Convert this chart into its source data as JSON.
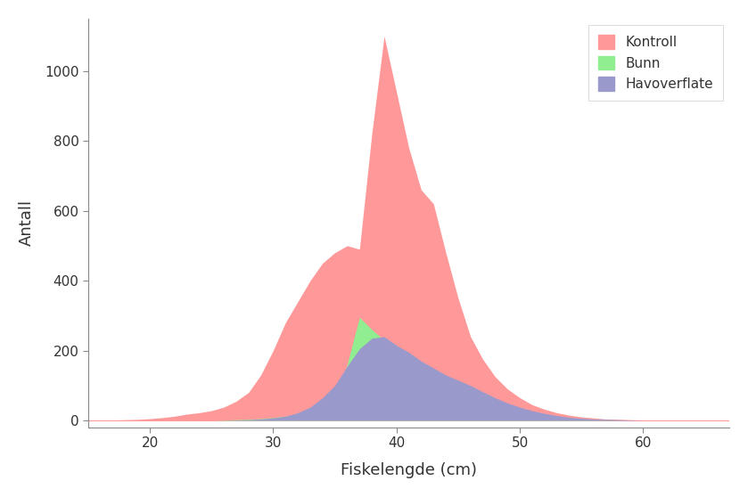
{
  "xlabel": "Fiskelengde (cm)",
  "ylabel": "Antall",
  "xlim": [
    15,
    67
  ],
  "ylim": [
    -20,
    1150
  ],
  "xticks": [
    20,
    30,
    40,
    50,
    60
  ],
  "yticks": [
    0,
    200,
    400,
    600,
    800,
    1000
  ],
  "legend_labels": [
    "Kontroll",
    "Bunn",
    "Havoverflate"
  ],
  "colors": {
    "kontroll": "#FF9999",
    "bunn": "#90EE90",
    "havoverflate": "#9999CC"
  },
  "kontroll_x": [
    15,
    16,
    17,
    18,
    19,
    20,
    21,
    22,
    23,
    24,
    25,
    26,
    27,
    28,
    29,
    30,
    31,
    32,
    33,
    34,
    35,
    36,
    37,
    38,
    39,
    40,
    41,
    42,
    43,
    44,
    45,
    46,
    47,
    48,
    49,
    50,
    51,
    52,
    53,
    54,
    55,
    56,
    57,
    58,
    59,
    60,
    61,
    62,
    63,
    64,
    65,
    66,
    67
  ],
  "kontroll_y": [
    0,
    0,
    1,
    2,
    3,
    5,
    8,
    12,
    18,
    22,
    28,
    38,
    55,
    80,
    130,
    200,
    280,
    340,
    400,
    450,
    480,
    500,
    490,
    820,
    1100,
    940,
    780,
    660,
    620,
    480,
    350,
    240,
    175,
    125,
    90,
    65,
    45,
    32,
    22,
    15,
    10,
    7,
    4,
    3,
    2,
    1,
    1,
    0,
    0,
    0,
    0,
    0,
    0
  ],
  "bunn_x": [
    15,
    16,
    17,
    18,
    19,
    20,
    21,
    22,
    23,
    24,
    25,
    26,
    27,
    28,
    29,
    30,
    31,
    32,
    33,
    34,
    35,
    36,
    37,
    38,
    39,
    40,
    41,
    42,
    43,
    44,
    45,
    46,
    47,
    48,
    49,
    50,
    51,
    52,
    53,
    54,
    55,
    56,
    57,
    58,
    59,
    60,
    61,
    62,
    63,
    64,
    65,
    66,
    67
  ],
  "bunn_y": [
    0,
    0,
    0,
    0,
    0,
    0,
    0,
    0,
    0,
    0,
    0,
    1,
    2,
    3,
    5,
    8,
    12,
    18,
    25,
    35,
    50,
    160,
    295,
    260,
    230,
    175,
    155,
    130,
    110,
    90,
    70,
    52,
    38,
    28,
    20,
    14,
    9,
    6,
    4,
    3,
    2,
    1,
    1,
    0,
    0,
    0,
    0,
    0,
    0,
    0,
    0,
    0,
    0
  ],
  "havoverflate_x": [
    15,
    16,
    17,
    18,
    19,
    20,
    21,
    22,
    23,
    24,
    25,
    26,
    27,
    28,
    29,
    30,
    31,
    32,
    33,
    34,
    35,
    36,
    37,
    38,
    39,
    40,
    41,
    42,
    43,
    44,
    45,
    46,
    47,
    48,
    49,
    50,
    51,
    52,
    53,
    54,
    55,
    56,
    57,
    58,
    59,
    60,
    61,
    62,
    63,
    64,
    65,
    66,
    67
  ],
  "havoverflate_y": [
    0,
    0,
    0,
    0,
    0,
    0,
    0,
    0,
    0,
    0,
    0,
    0,
    1,
    2,
    4,
    7,
    12,
    22,
    38,
    65,
    100,
    155,
    205,
    235,
    240,
    215,
    195,
    170,
    150,
    130,
    115,
    100,
    82,
    65,
    50,
    38,
    28,
    20,
    14,
    9,
    6,
    4,
    3,
    2,
    1,
    0,
    0,
    0,
    0,
    0,
    0,
    0,
    0
  ],
  "background_color": "#FFFFFF",
  "plot_bg_color": "#FFFFFF",
  "zero_line_color": "#FF9999",
  "spine_color": "#888888",
  "tick_label_color": "#333333",
  "label_color": "#333333"
}
